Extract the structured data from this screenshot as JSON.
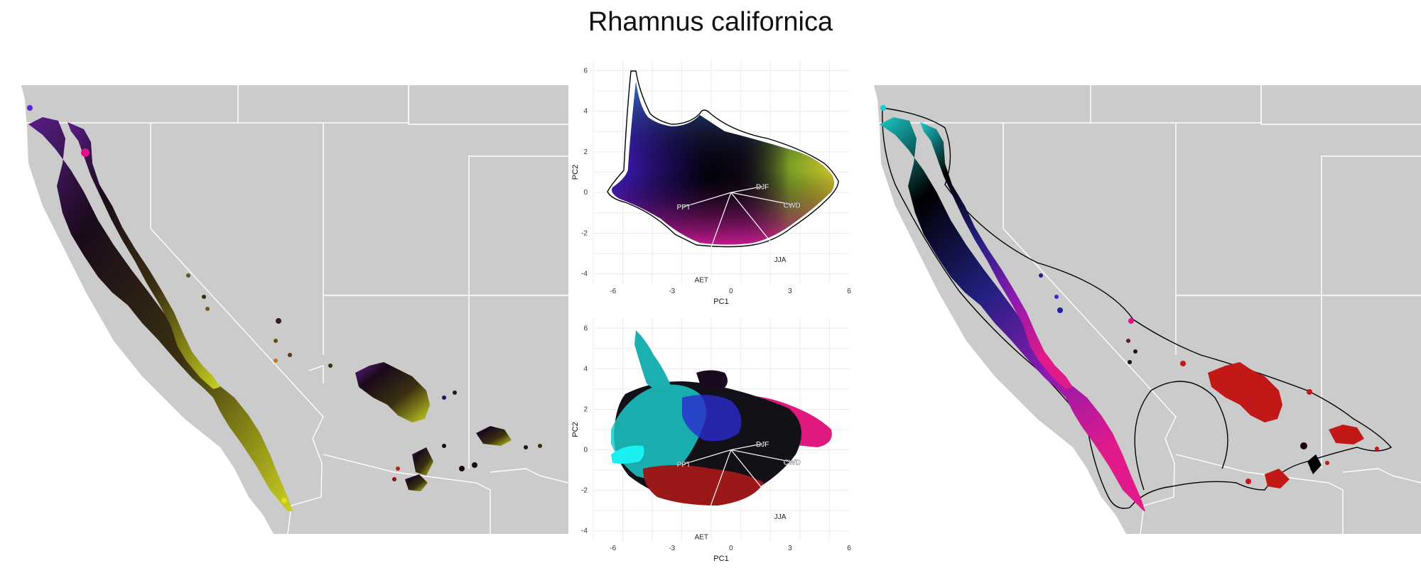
{
  "page": {
    "title": "Rhamnus californica"
  },
  "colors": {
    "land": "#cbcbcb",
    "state_border": "#ffffff",
    "grid": "#ececec",
    "hull": "#000000",
    "loading": "#ffffff",
    "red_cluster": "#c21818",
    "cyan_cluster": "#1bc9c9",
    "magenta_cluster": "#e0197f"
  },
  "chart_data": [
    {
      "type": "scatter",
      "panel": "top",
      "title": "",
      "xlabel": "PC1",
      "ylabel": "PC2",
      "xlim": [
        -7,
        6
      ],
      "ylim": [
        -4.5,
        6.5
      ],
      "xticks": [
        "-6",
        "-3",
        "0",
        "3",
        "6"
      ],
      "yticks": [
        "-4",
        "-2",
        "0",
        "2",
        "4",
        "6"
      ],
      "grid": true,
      "loadings": [
        {
          "label": "DJF",
          "x": 1.6,
          "y": 0.3
        },
        {
          "label": "CWD",
          "x": 3.1,
          "y": -0.6
        },
        {
          "label": "PPT",
          "x": -2.4,
          "y": -0.7
        },
        {
          "label": "JJA",
          "x": 2.5,
          "y": -3.0
        },
        {
          "label": "AET",
          "x": -1.5,
          "y": -4.0
        }
      ]
    },
    {
      "type": "scatter",
      "panel": "bottom",
      "title": "",
      "xlabel": "PC1",
      "ylabel": "PC2",
      "xlim": [
        -7,
        6
      ],
      "ylim": [
        -4.5,
        6.5
      ],
      "xticks": [
        "-6",
        "-3",
        "0",
        "3",
        "6"
      ],
      "yticks": [
        "-4",
        "-2",
        "0",
        "2",
        "4",
        "6"
      ],
      "grid": true,
      "loadings": [
        {
          "label": "DJF",
          "x": 1.6,
          "y": 0.3
        },
        {
          "label": "CWD",
          "x": 3.1,
          "y": -0.6
        },
        {
          "label": "PPT",
          "x": -2.4,
          "y": -0.7
        },
        {
          "label": "JJA",
          "x": 2.5,
          "y": -3.0
        },
        {
          "label": "AET",
          "x": -1.5,
          "y": -4.0
        }
      ]
    }
  ]
}
